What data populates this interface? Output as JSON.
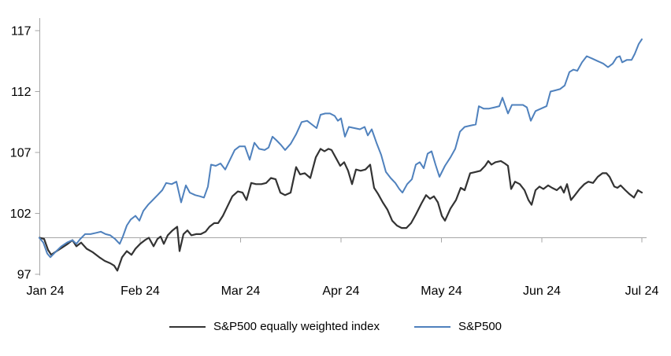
{
  "chart_data": {
    "type": "line",
    "title": "",
    "xlabel": "",
    "ylabel": "",
    "grid": "off",
    "legend_position": "bottom-center",
    "y_axis": {
      "min": 97,
      "max": 117,
      "ticks": [
        97,
        102,
        107,
        112,
        117
      ],
      "baseline_value": 100
    },
    "x_axis": {
      "labels": [
        "Jan 24",
        "Feb 24",
        "Mar 24",
        "Apr 24",
        "May 24",
        "Jun 24",
        "Jul 24"
      ]
    },
    "x_note": "points use [x_px_on_time_axis, index_value]; time axis spans x=50 (Jan 24) to x=815 (Jul 24)",
    "series": [
      {
        "name": "S&P500 equally weighted index",
        "color": "#333333",
        "points": [
          [
            50,
            100
          ],
          [
            56,
            99.9
          ],
          [
            61,
            99
          ],
          [
            65,
            98.6
          ],
          [
            72,
            98.9
          ],
          [
            79,
            99.2
          ],
          [
            86,
            99.5
          ],
          [
            92,
            99.8
          ],
          [
            97,
            99.3
          ],
          [
            103,
            99.6
          ],
          [
            110,
            99.1
          ],
          [
            118,
            98.8
          ],
          [
            126,
            98.4
          ],
          [
            133,
            98.1
          ],
          [
            140,
            97.9
          ],
          [
            145,
            97.7
          ],
          [
            149,
            97.3
          ],
          [
            155,
            98.4
          ],
          [
            161,
            98.9
          ],
          [
            167,
            98.6
          ],
          [
            172,
            99.1
          ],
          [
            178,
            99.5
          ],
          [
            184,
            99.8
          ],
          [
            189,
            100
          ],
          [
            195,
            99.3
          ],
          [
            200,
            99.9
          ],
          [
            204,
            100.1
          ],
          [
            208,
            99.5
          ],
          [
            213,
            100.2
          ],
          [
            219,
            100.6
          ],
          [
            225,
            100.9
          ],
          [
            228,
            98.9
          ],
          [
            233,
            100.3
          ],
          [
            238,
            100.6
          ],
          [
            243,
            100.2
          ],
          [
            249,
            100.3
          ],
          [
            255,
            100.3
          ],
          [
            261,
            100.5
          ],
          [
            266,
            100.9
          ],
          [
            272,
            101.2
          ],
          [
            277,
            101.2
          ],
          [
            283,
            101.8
          ],
          [
            289,
            102.6
          ],
          [
            295,
            103.4
          ],
          [
            302,
            103.8
          ],
          [
            308,
            103.7
          ],
          [
            313,
            103.1
          ],
          [
            319,
            104.5
          ],
          [
            325,
            104.4
          ],
          [
            332,
            104.4
          ],
          [
            338,
            104.5
          ],
          [
            344,
            104.9
          ],
          [
            350,
            104.8
          ],
          [
            356,
            103.7
          ],
          [
            362,
            103.5
          ],
          [
            369,
            103.7
          ],
          [
            376,
            105.8
          ],
          [
            381,
            105.2
          ],
          [
            387,
            105.3
          ],
          [
            394,
            104.9
          ],
          [
            401,
            106.6
          ],
          [
            407,
            107.3
          ],
          [
            412,
            107.1
          ],
          [
            417,
            107.3
          ],
          [
            421,
            107.2
          ],
          [
            427,
            106.5
          ],
          [
            432,
            105.9
          ],
          [
            437,
            106.2
          ],
          [
            442,
            105.5
          ],
          [
            447,
            104.4
          ],
          [
            452,
            105.6
          ],
          [
            458,
            105.5
          ],
          [
            464,
            105.6
          ],
          [
            470,
            106
          ],
          [
            475,
            104.1
          ],
          [
            480,
            103.6
          ],
          [
            486,
            102.9
          ],
          [
            492,
            102.3
          ],
          [
            498,
            101.4
          ],
          [
            504,
            101
          ],
          [
            510,
            100.8
          ],
          [
            516,
            100.8
          ],
          [
            522,
            101.2
          ],
          [
            528,
            101.9
          ],
          [
            535,
            102.8
          ],
          [
            541,
            103.5
          ],
          [
            546,
            103.2
          ],
          [
            551,
            103.4
          ],
          [
            556,
            102.9
          ],
          [
            561,
            101.8
          ],
          [
            565,
            101.4
          ],
          [
            572,
            102.4
          ],
          [
            579,
            103.1
          ],
          [
            585,
            104.1
          ],
          [
            590,
            103.9
          ],
          [
            597,
            105.3
          ],
          [
            604,
            105.4
          ],
          [
            610,
            105.5
          ],
          [
            616,
            105.9
          ],
          [
            620,
            106.3
          ],
          [
            624,
            106
          ],
          [
            629,
            106.2
          ],
          [
            636,
            106.3
          ],
          [
            641,
            106.1
          ],
          [
            645,
            105.9
          ],
          [
            649,
            104
          ],
          [
            654,
            104.6
          ],
          [
            660,
            104.4
          ],
          [
            666,
            103.9
          ],
          [
            671,
            103.1
          ],
          [
            675,
            102.7
          ],
          [
            680,
            103.9
          ],
          [
            685,
            104.2
          ],
          [
            690,
            104
          ],
          [
            696,
            104.3
          ],
          [
            701,
            104.1
          ],
          [
            707,
            103.9
          ],
          [
            712,
            104.2
          ],
          [
            716,
            103.7
          ],
          [
            720,
            104.4
          ],
          [
            725,
            103.1
          ],
          [
            730,
            103.5
          ],
          [
            736,
            104
          ],
          [
            742,
            104.4
          ],
          [
            747,
            104.6
          ],
          [
            753,
            104.5
          ],
          [
            759,
            105
          ],
          [
            765,
            105.3
          ],
          [
            770,
            105.3
          ],
          [
            774,
            105
          ],
          [
            780,
            104.2
          ],
          [
            784,
            104.1
          ],
          [
            788,
            104.3
          ],
          [
            794,
            103.9
          ],
          [
            799,
            103.6
          ],
          [
            805,
            103.3
          ],
          [
            810,
            103.9
          ],
          [
            815,
            103.7
          ]
        ]
      },
      {
        "name": "S&P500",
        "color": "#4f81bd",
        "points": [
          [
            50,
            100
          ],
          [
            55,
            99.6
          ],
          [
            60,
            98.7
          ],
          [
            64,
            98.4
          ],
          [
            70,
            98.8
          ],
          [
            78,
            99.3
          ],
          [
            85,
            99.6
          ],
          [
            92,
            99.8
          ],
          [
            97,
            99.5
          ],
          [
            102,
            99.9
          ],
          [
            108,
            100.3
          ],
          [
            115,
            100.3
          ],
          [
            122,
            100.4
          ],
          [
            128,
            100.5
          ],
          [
            134,
            100.3
          ],
          [
            140,
            100.2
          ],
          [
            146,
            99.9
          ],
          [
            152,
            99.5
          ],
          [
            156,
            100.1
          ],
          [
            161,
            101
          ],
          [
            166,
            101.5
          ],
          [
            172,
            101.8
          ],
          [
            177,
            101.4
          ],
          [
            182,
            102.2
          ],
          [
            188,
            102.7
          ],
          [
            194,
            103.1
          ],
          [
            200,
            103.5
          ],
          [
            206,
            103.9
          ],
          [
            211,
            104.5
          ],
          [
            218,
            104.4
          ],
          [
            224,
            104.6
          ],
          [
            230,
            102.9
          ],
          [
            236,
            104.3
          ],
          [
            241,
            103.7
          ],
          [
            248,
            103.5
          ],
          [
            254,
            103.4
          ],
          [
            259,
            103.3
          ],
          [
            264,
            104.2
          ],
          [
            268,
            106
          ],
          [
            274,
            105.9
          ],
          [
            280,
            106.1
          ],
          [
            286,
            105.6
          ],
          [
            292,
            106.4
          ],
          [
            298,
            107.2
          ],
          [
            304,
            107.5
          ],
          [
            311,
            107.5
          ],
          [
            317,
            106.4
          ],
          [
            323,
            107.8
          ],
          [
            329,
            107.3
          ],
          [
            336,
            107.2
          ],
          [
            341,
            107.4
          ],
          [
            346,
            108.3
          ],
          [
            351,
            108
          ],
          [
            357,
            107.6
          ],
          [
            362,
            107.2
          ],
          [
            369,
            107.7
          ],
          [
            376,
            108.5
          ],
          [
            383,
            109.5
          ],
          [
            390,
            109.6
          ],
          [
            396,
            109.3
          ],
          [
            402,
            109
          ],
          [
            407,
            110.1
          ],
          [
            413,
            110.2
          ],
          [
            419,
            110.2
          ],
          [
            425,
            110
          ],
          [
            429,
            109.6
          ],
          [
            433,
            109.8
          ],
          [
            438,
            108.3
          ],
          [
            443,
            109.1
          ],
          [
            450,
            109
          ],
          [
            457,
            108.9
          ],
          [
            463,
            109.1
          ],
          [
            467,
            108.4
          ],
          [
            472,
            108.9
          ],
          [
            478,
            107.8
          ],
          [
            484,
            106.8
          ],
          [
            490,
            105.4
          ],
          [
            496,
            104.9
          ],
          [
            502,
            104.5
          ],
          [
            507,
            104
          ],
          [
            511,
            103.7
          ],
          [
            517,
            104.4
          ],
          [
            523,
            104.8
          ],
          [
            528,
            106
          ],
          [
            533,
            106.2
          ],
          [
            538,
            105.7
          ],
          [
            543,
            106.9
          ],
          [
            548,
            107.1
          ],
          [
            553,
            106
          ],
          [
            558,
            105
          ],
          [
            565,
            105.9
          ],
          [
            572,
            106.6
          ],
          [
            578,
            107.3
          ],
          [
            584,
            108.7
          ],
          [
            590,
            109.1
          ],
          [
            597,
            109.2
          ],
          [
            604,
            109.3
          ],
          [
            608,
            110.8
          ],
          [
            614,
            110.6
          ],
          [
            621,
            110.6
          ],
          [
            628,
            110.7
          ],
          [
            634,
            110.8
          ],
          [
            638,
            111.5
          ],
          [
            645,
            110.2
          ],
          [
            650,
            110.9
          ],
          [
            657,
            110.9
          ],
          [
            664,
            110.9
          ],
          [
            669,
            110.7
          ],
          [
            674,
            109.6
          ],
          [
            680,
            110.4
          ],
          [
            687,
            110.6
          ],
          [
            694,
            110.8
          ],
          [
            699,
            112
          ],
          [
            705,
            112.1
          ],
          [
            711,
            112.2
          ],
          [
            717,
            112.5
          ],
          [
            723,
            113.6
          ],
          [
            728,
            113.8
          ],
          [
            733,
            113.7
          ],
          [
            739,
            114.4
          ],
          [
            745,
            114.9
          ],
          [
            752,
            114.7
          ],
          [
            759,
            114.5
          ],
          [
            766,
            114.3
          ],
          [
            772,
            114
          ],
          [
            778,
            114.3
          ],
          [
            783,
            114.8
          ],
          [
            787,
            114.9
          ],
          [
            790,
            114.4
          ],
          [
            796,
            114.6
          ],
          [
            802,
            114.6
          ],
          [
            806,
            115.1
          ],
          [
            811,
            115.9
          ],
          [
            815,
            116.3
          ]
        ]
      }
    ],
    "colors": {
      "axis_line": "#a6a6a6",
      "baseline_100": "#a6a6a6",
      "text": "#000000",
      "background": "#ffffff"
    }
  },
  "legend": {
    "items": [
      {
        "label": "S&P500 equally weighted index",
        "color": "#333333"
      },
      {
        "label": "S&P500",
        "color": "#4f81bd"
      }
    ]
  }
}
